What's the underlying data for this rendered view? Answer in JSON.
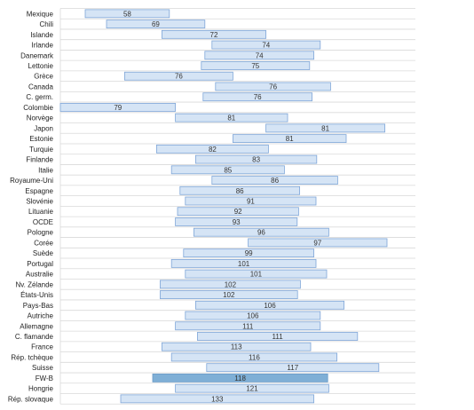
{
  "chart_data": {
    "type": "bar",
    "orientation": "horizontal",
    "style": "floating range bars",
    "title": "",
    "xlabel": "",
    "ylabel": "",
    "grid": "horizontal lines",
    "legend": "none",
    "colors": {
      "bar_fill": "#d5e4f5",
      "bar_stroke": "#7fa6d8",
      "highlight_fill": "#7fafd6",
      "highlight_stroke": "#6a9bc8",
      "grid": "#d9d9d9"
    },
    "highlight": "FW-B",
    "x_range_units": "relative position (0 = left axis, 100 = right edge of plot)",
    "categories": [
      "Mexique",
      "Chili",
      "Islande",
      "Irlande",
      "Danemark",
      "Lettonie",
      "Grèce",
      "Canada",
      "C. germ.",
      "Colombie",
      "Norvège",
      "Japon",
      "Estonie",
      "Turquie",
      "Finlande",
      "Italie",
      "Royaume-Uni",
      "Espagne",
      "Slovénie",
      "Lituanie",
      "OCDE",
      "Pologne",
      "Corée",
      "Suède",
      "Portugal",
      "Australie",
      "Nv. Zélande",
      "États-Unis",
      "Pays-Bas",
      "Autriche",
      "Allemagne",
      "C. flamande",
      "France",
      "Rép. tchèque",
      "Suisse",
      "FW-B",
      "Hongrie",
      "Rép. slovaque"
    ],
    "values": [
      58,
      69,
      72,
      74,
      74,
      75,
      76,
      76,
      76,
      79,
      81,
      81,
      81,
      82,
      83,
      85,
      86,
      86,
      91,
      92,
      93,
      96,
      97,
      99,
      101,
      101,
      102,
      102,
      106,
      106,
      111,
      111,
      113,
      116,
      117,
      118,
      121,
      133
    ],
    "ranges": [
      [
        7.0,
        30.7
      ],
      [
        13.0,
        40.7
      ],
      [
        28.6,
        57.9
      ],
      [
        42.7,
        73.2
      ],
      [
        40.7,
        71.4
      ],
      [
        39.7,
        70.2
      ],
      [
        18.1,
        48.6
      ],
      [
        43.7,
        76.1
      ],
      [
        40.2,
        70.9
      ],
      [
        0.0,
        32.4
      ],
      [
        32.4,
        64.0
      ],
      [
        57.9,
        91.4
      ],
      [
        48.6,
        80.5
      ],
      [
        27.1,
        58.6
      ],
      [
        38.1,
        72.2
      ],
      [
        31.3,
        63.1
      ],
      [
        42.7,
        78.1
      ],
      [
        33.7,
        67.4
      ],
      [
        35.2,
        72.0
      ],
      [
        33.0,
        67.1
      ],
      [
        32.4,
        66.7
      ],
      [
        37.6,
        75.6
      ],
      [
        52.9,
        92.0
      ],
      [
        34.7,
        71.4
      ],
      [
        31.3,
        72.0
      ],
      [
        35.2,
        75.0
      ],
      [
        28.1,
        67.6
      ],
      [
        28.1,
        66.8
      ],
      [
        38.1,
        79.9
      ],
      [
        35.2,
        73.2
      ],
      [
        32.4,
        73.2
      ],
      [
        38.6,
        83.7
      ],
      [
        28.6,
        70.5
      ],
      [
        31.3,
        77.9
      ],
      [
        41.2,
        89.7
      ],
      [
        26.0,
        75.3
      ],
      [
        32.4,
        75.6
      ],
      [
        17.0,
        71.4
      ]
    ]
  }
}
